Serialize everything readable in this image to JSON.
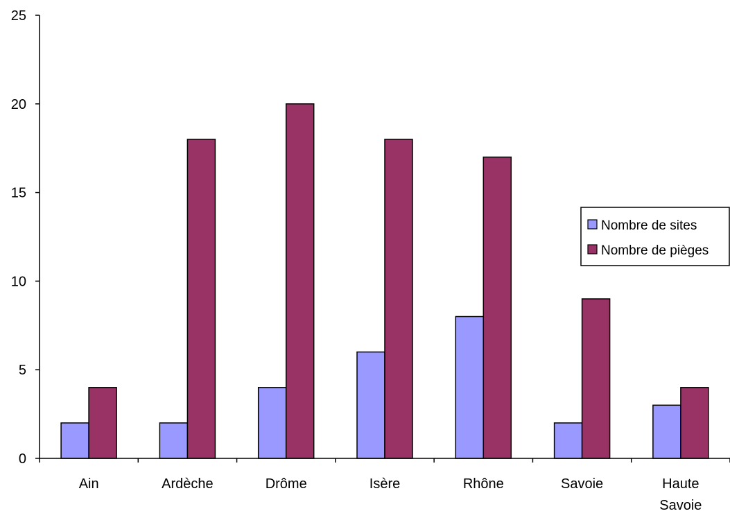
{
  "chart_data": {
    "type": "bar",
    "title": "",
    "xlabel": "",
    "ylabel": "",
    "ylim": [
      0,
      25
    ],
    "yticks": [
      0,
      5,
      10,
      15,
      20,
      25
    ],
    "grid": false,
    "legend_position": "right",
    "categories": [
      "Ain",
      "Ardèche",
      "Drôme",
      "Isère",
      "Rhône",
      "Savoie",
      "Haute Savoie"
    ],
    "series": [
      {
        "name": "Nombre de sites",
        "color": "#9999ff",
        "values": [
          2,
          2,
          4,
          6,
          8,
          2,
          3
        ]
      },
      {
        "name": "Nombre de pièges",
        "color": "#993366",
        "values": [
          4,
          18,
          20,
          18,
          17,
          9,
          4
        ]
      }
    ]
  }
}
